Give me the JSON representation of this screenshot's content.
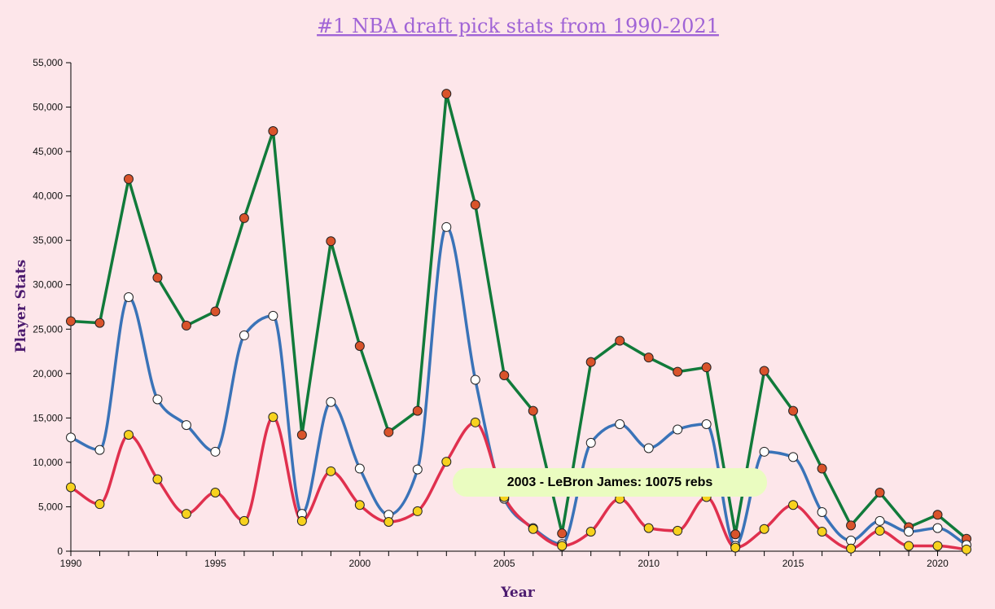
{
  "chart_data": {
    "type": "line",
    "title": "#1 NBA draft pick stats from 1990-2021",
    "xlabel": "Year",
    "ylabel": "Player Stats",
    "xlim": [
      1990,
      2021
    ],
    "ylim": [
      0,
      55000
    ],
    "x_ticks": [
      "1990",
      "1995",
      "2000",
      "2005",
      "2010",
      "2015",
      "2020"
    ],
    "y_ticks": [
      "0",
      "5,000",
      "10,000",
      "15,000",
      "20,000",
      "25,000",
      "30,000",
      "35,000",
      "40,000",
      "45,000",
      "50,000",
      "55,000"
    ],
    "grid": false,
    "x": [
      1990,
      1991,
      1992,
      1993,
      1994,
      1995,
      1996,
      1997,
      1998,
      1999,
      2000,
      2001,
      2002,
      2003,
      2004,
      2005,
      2006,
      2007,
      2008,
      2009,
      2010,
      2011,
      2012,
      2013,
      2014,
      2015,
      2016,
      2017,
      2018,
      2019,
      2020,
      2021
    ],
    "series": [
      {
        "color": "#117a3a",
        "marker": "#d9532b",
        "curve": "linear",
        "values": [
          25900,
          25700,
          41900,
          30800,
          25400,
          27000,
          37500,
          47300,
          13100,
          34900,
          23100,
          13400,
          15800,
          51500,
          39000,
          19800,
          15800,
          2000,
          21300,
          23700,
          21800,
          20200,
          20700,
          1900,
          20300,
          15800,
          9300,
          2900,
          6600,
          2700,
          4100,
          1400
        ]
      },
      {
        "color": "#3a73b8",
        "marker": "#ffffff",
        "curve": "smooth",
        "values": [
          12800,
          11400,
          28600,
          17100,
          14200,
          11200,
          24300,
          26500,
          4200,
          16800,
          9300,
          4100,
          9200,
          36500,
          19300,
          5900,
          2600,
          800,
          12200,
          14300,
          11600,
          13700,
          14300,
          600,
          11200,
          10600,
          4400,
          1200,
          3400,
          2200,
          2600,
          700
        ]
      },
      {
        "color": "#e0304e",
        "marker": "#f7d21e",
        "curve": "smooth",
        "values": [
          7200,
          5300,
          13100,
          8100,
          4200,
          6600,
          3400,
          15100,
          3400,
          9000,
          5200,
          3300,
          4500,
          10075,
          14500,
          6100,
          2500,
          600,
          2200,
          5900,
          2600,
          2300,
          6100,
          400,
          2500,
          5200,
          2200,
          300,
          2300,
          600,
          600,
          200
        ]
      }
    ],
    "tooltip": {
      "text": "2003 - LeBron James: 10075 rebs",
      "background": "#eafcc0"
    }
  }
}
